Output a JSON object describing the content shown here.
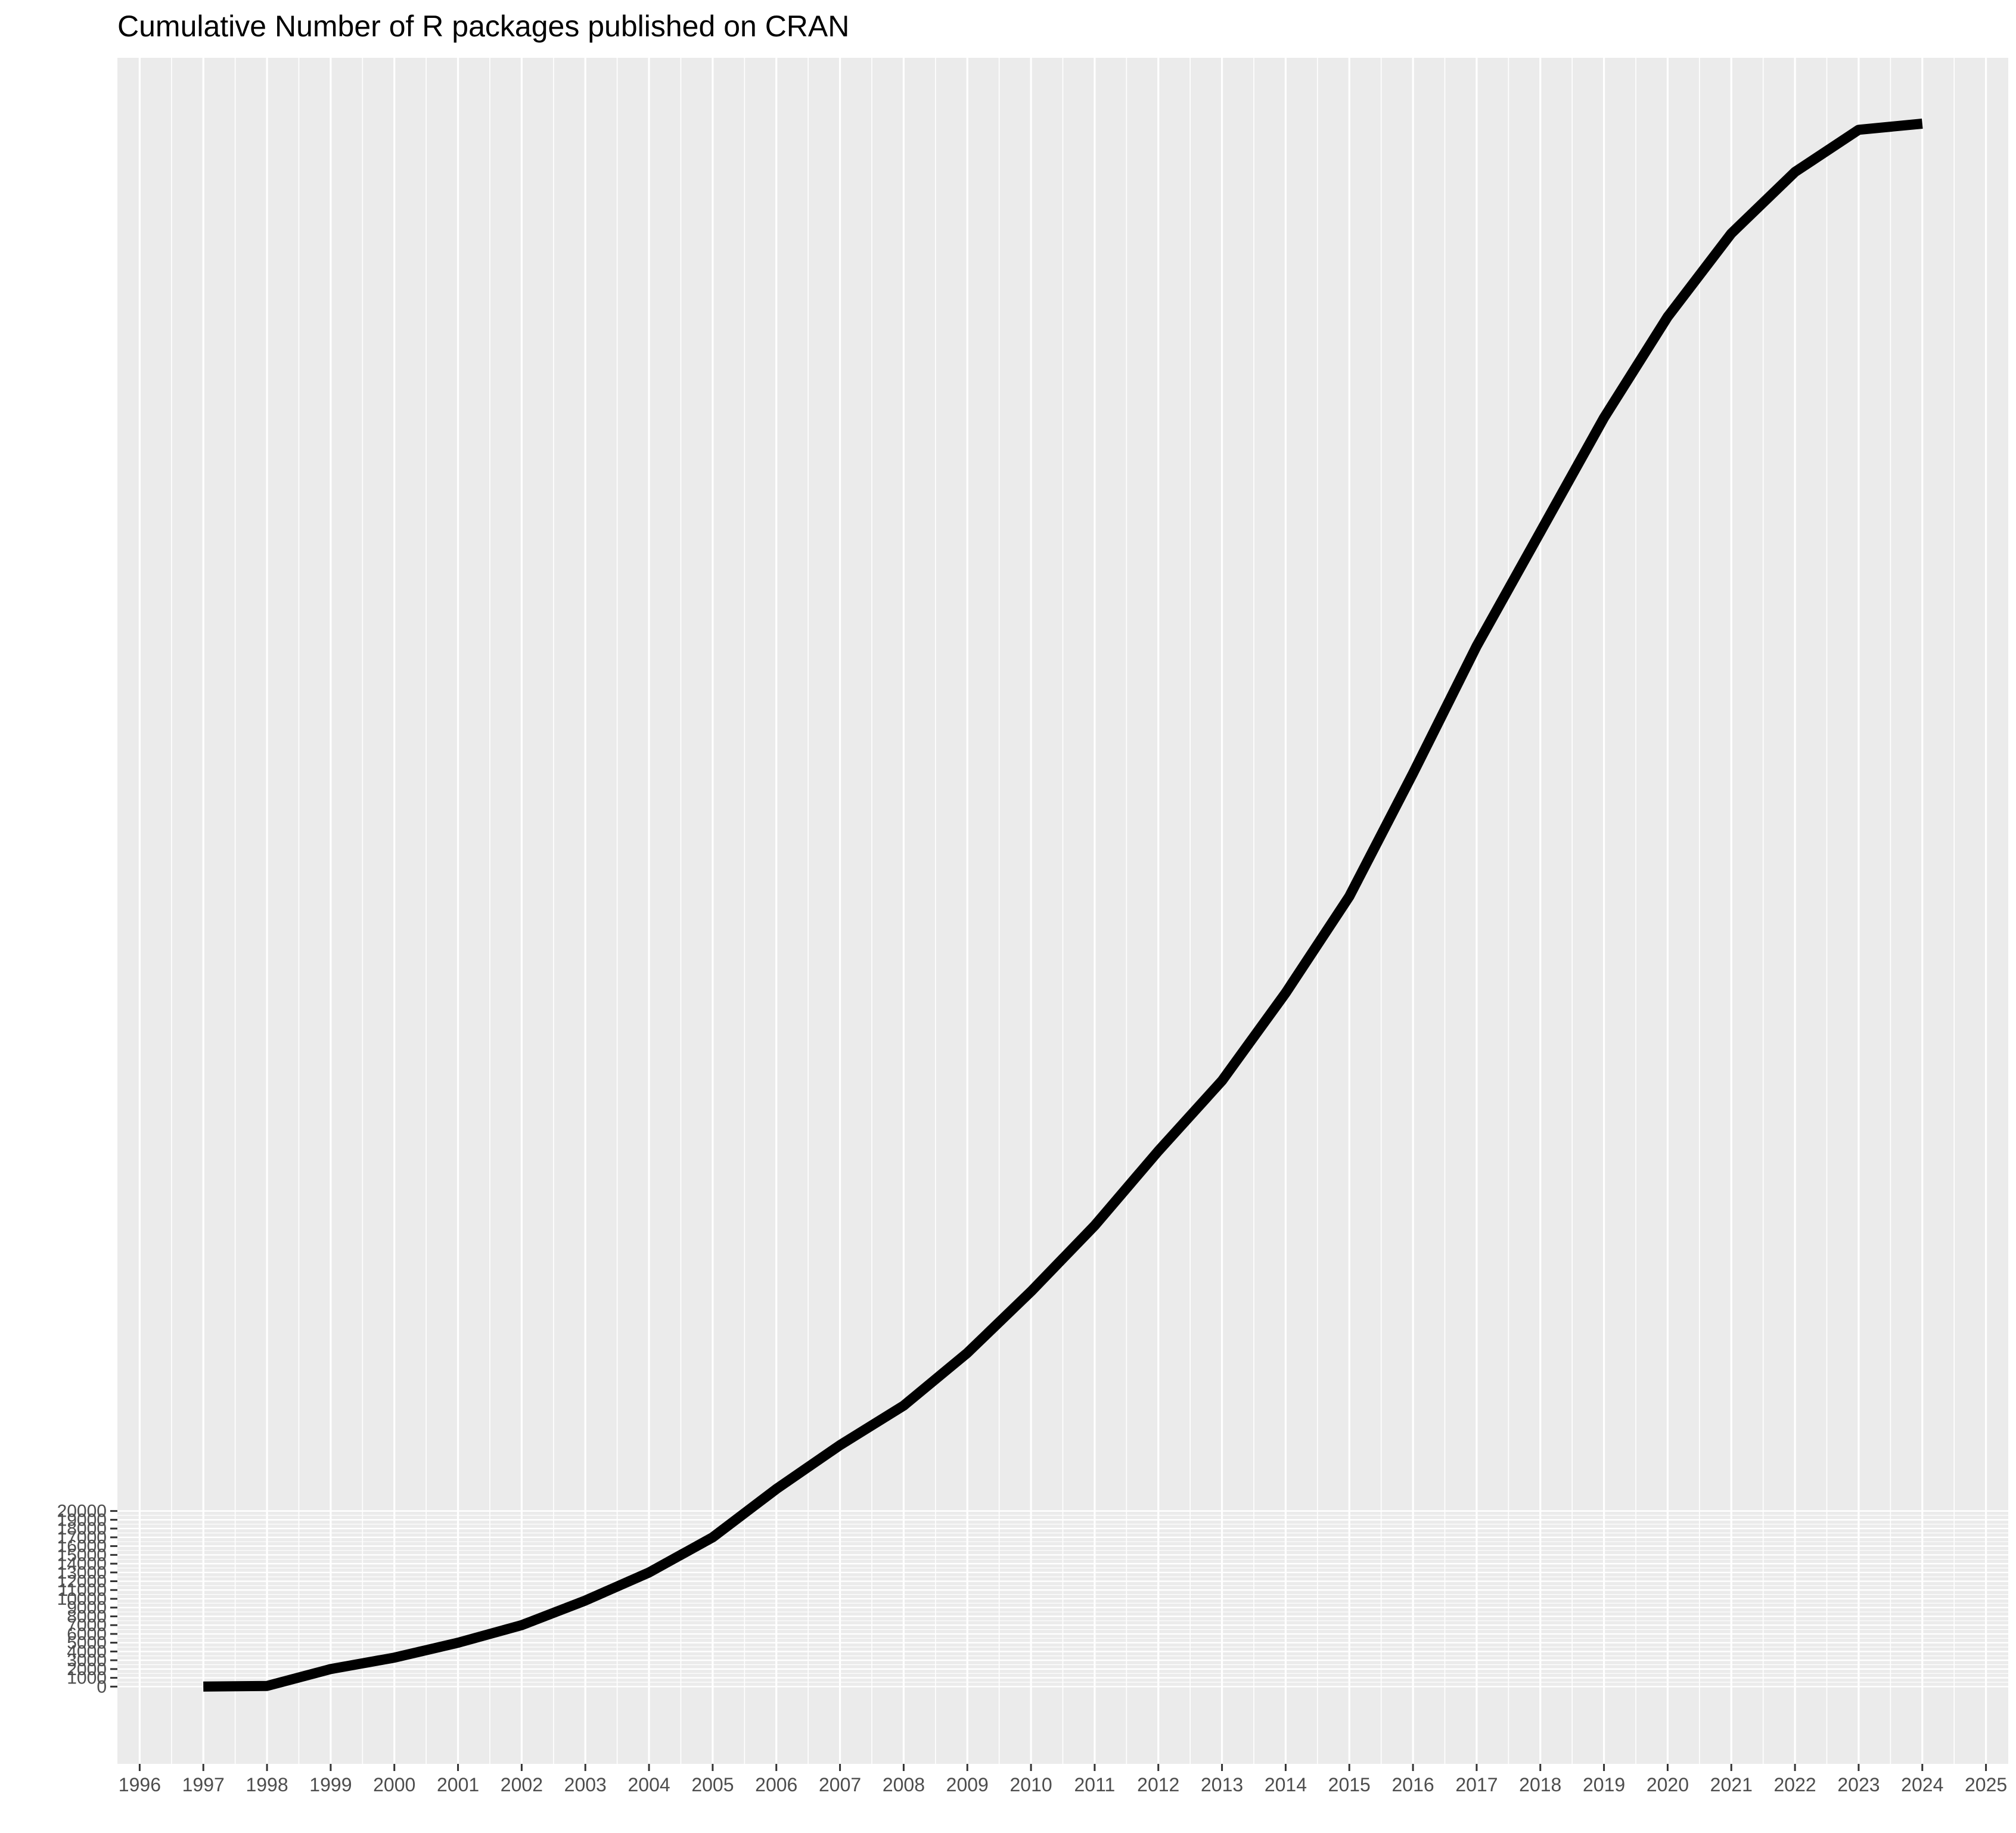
{
  "chart_data": {
    "type": "line",
    "title": "Cumulative Number of R packages published on CRAN",
    "xlabel": "",
    "ylabel": "",
    "x": [
      1997,
      1998,
      1999,
      2000,
      2001,
      2002,
      2003,
      2004,
      2005,
      2006,
      2007,
      2008,
      2009,
      2010,
      2011,
      2012,
      2013,
      2014,
      2015,
      2016,
      2017,
      2018,
      2019,
      2020,
      2021,
      2022,
      2023,
      2024
    ],
    "series": [
      {
        "values": [
          12,
          80,
          2000,
          3300,
          5000,
          7000,
          9800,
          13000,
          17000,
          22500,
          27500,
          32000,
          38000,
          45000,
          52500,
          61000,
          69000,
          79000,
          90000,
          104000,
          118500,
          131500,
          144500,
          156000,
          165500,
          172500,
          177300,
          178000
        ],
        "color": "#000000"
      }
    ],
    "xticks": [
      "1996",
      "1997",
      "1998",
      "1999",
      "2000",
      "2001",
      "2002",
      "2003",
      "2004",
      "2005",
      "2006",
      "2007",
      "2008",
      "2009",
      "2010",
      "2011",
      "2012",
      "2013",
      "2014",
      "2015",
      "2016",
      "2017",
      "2018",
      "2019",
      "2020",
      "2021",
      "2022",
      "2023",
      "2024",
      "2025"
    ],
    "yticks": [
      0,
      1000,
      2000,
      3000,
      4000,
      5000,
      6000,
      7000,
      8000,
      9000,
      10000,
      11000,
      12000,
      13000,
      14000,
      15000,
      16000,
      17000,
      18000,
      19000,
      20000
    ],
    "xlim": [
      1995.65,
      2025.35
    ],
    "ylim": [
      -8800,
      185500
    ],
    "grid": true,
    "legend": "none",
    "panel_color": "#ebebeb",
    "grid_color": "#ffffff"
  }
}
